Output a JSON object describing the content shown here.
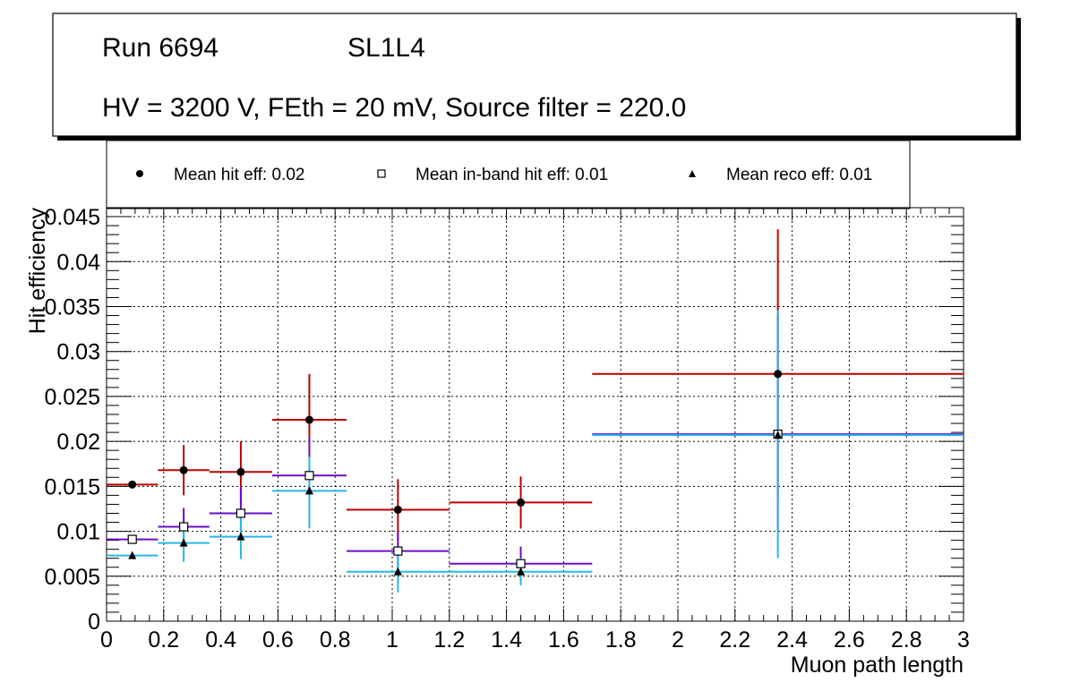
{
  "chart_data": {
    "type": "scatter",
    "title_box": {
      "line1_run": "Run 6694",
      "line1_layer": "SL1L4",
      "line2": "HV = 3200 V, FEth = 20 mV, Source filter = 220.0"
    },
    "legend": [
      {
        "label": "Mean hit  eff: 0.02",
        "marker": "circle"
      },
      {
        "label": "Mean in-band hit eff: 0.01",
        "marker": "open-square"
      },
      {
        "label": "Mean reco eff: 0.01",
        "marker": "triangle"
      }
    ],
    "xlabel": "Muon path length",
    "ylabel": "Hit efficiency",
    "xlim": [
      0,
      3
    ],
    "ylim": [
      0,
      0.046
    ],
    "grid": true,
    "xticks": [
      {
        "v": 0,
        "label": "0"
      },
      {
        "v": 0.2,
        "label": "0.2"
      },
      {
        "v": 0.4,
        "label": "0.4"
      },
      {
        "v": 0.6,
        "label": "0.6"
      },
      {
        "v": 0.8,
        "label": "0.8"
      },
      {
        "v": 1,
        "label": "1"
      },
      {
        "v": 1.2,
        "label": "1.2"
      },
      {
        "v": 1.4,
        "label": "1.4"
      },
      {
        "v": 1.6,
        "label": "1.6"
      },
      {
        "v": 1.8,
        "label": "1.8"
      },
      {
        "v": 2,
        "label": "2"
      },
      {
        "v": 2.2,
        "label": "2.2"
      },
      {
        "v": 2.4,
        "label": "2.4"
      },
      {
        "v": 2.6,
        "label": "2.6"
      },
      {
        "v": 2.8,
        "label": "2.8"
      },
      {
        "v": 3,
        "label": "3"
      }
    ],
    "yticks": [
      {
        "v": 0,
        "label": "0"
      },
      {
        "v": 0.005,
        "label": "0.005"
      },
      {
        "v": 0.01,
        "label": "0.01"
      },
      {
        "v": 0.015,
        "label": "0.015"
      },
      {
        "v": 0.02,
        "label": "0.02"
      },
      {
        "v": 0.025,
        "label": "0.025"
      },
      {
        "v": 0.03,
        "label": "0.03"
      },
      {
        "v": 0.035,
        "label": "0.035"
      },
      {
        "v": 0.04,
        "label": "0.04"
      },
      {
        "v": 0.045,
        "label": "0.045"
      }
    ],
    "series": [
      {
        "name": "Mean hit eff",
        "marker": "circle",
        "color": "#c00000",
        "points": [
          {
            "x": 0.09,
            "xlo": 0.0,
            "xhi": 0.18,
            "y": 0.0152,
            "ylo": 0.0152,
            "yhi": 0.0152
          },
          {
            "x": 0.27,
            "xlo": 0.18,
            "xhi": 0.36,
            "y": 0.0168,
            "ylo": 0.014,
            "yhi": 0.0196
          },
          {
            "x": 0.47,
            "xlo": 0.36,
            "xhi": 0.58,
            "y": 0.0166,
            "ylo": 0.0133,
            "yhi": 0.02
          },
          {
            "x": 0.71,
            "xlo": 0.58,
            "xhi": 0.84,
            "y": 0.0224,
            "ylo": 0.0172,
            "yhi": 0.0275
          },
          {
            "x": 1.02,
            "xlo": 0.84,
            "xhi": 1.2,
            "y": 0.0124,
            "ylo": 0.009,
            "yhi": 0.0158
          },
          {
            "x": 1.45,
            "xlo": 1.2,
            "xhi": 1.7,
            "y": 0.0132,
            "ylo": 0.0103,
            "yhi": 0.0161
          },
          {
            "x": 2.35,
            "xlo": 1.7,
            "xhi": 3.0,
            "y": 0.0275,
            "ylo": 0.0137,
            "yhi": 0.0436
          }
        ]
      },
      {
        "name": "Mean in-band hit eff",
        "marker": "open-square",
        "color": "#6a0dc8",
        "points": [
          {
            "x": 0.09,
            "xlo": 0.0,
            "xhi": 0.18,
            "y": 0.0091,
            "ylo": 0.0091,
            "yhi": 0.0091
          },
          {
            "x": 0.27,
            "xlo": 0.18,
            "xhi": 0.36,
            "y": 0.0105,
            "ylo": 0.0083,
            "yhi": 0.0126
          },
          {
            "x": 0.47,
            "xlo": 0.36,
            "xhi": 0.58,
            "y": 0.012,
            "ylo": 0.0092,
            "yhi": 0.0149
          },
          {
            "x": 0.71,
            "xlo": 0.58,
            "xhi": 0.84,
            "y": 0.0162,
            "ylo": 0.012,
            "yhi": 0.0205
          },
          {
            "x": 1.02,
            "xlo": 0.84,
            "xhi": 1.2,
            "y": 0.0078,
            "ylo": 0.0055,
            "yhi": 0.01
          },
          {
            "x": 1.45,
            "xlo": 1.2,
            "xhi": 1.7,
            "y": 0.0064,
            "ylo": 0.0045,
            "yhi": 0.0083
          },
          {
            "x": 2.35,
            "xlo": 1.7,
            "xhi": 3.0,
            "y": 0.0208,
            "ylo": 0.01,
            "yhi": 0.034
          }
        ]
      },
      {
        "name": "Mean reco eff",
        "marker": "triangle",
        "color": "#29b6e8",
        "points": [
          {
            "x": 0.09,
            "xlo": 0.0,
            "xhi": 0.18,
            "y": 0.0073,
            "ylo": 0.0073,
            "yhi": 0.0073
          },
          {
            "x": 0.27,
            "xlo": 0.18,
            "xhi": 0.36,
            "y": 0.0087,
            "ylo": 0.0066,
            "yhi": 0.0108
          },
          {
            "x": 0.47,
            "xlo": 0.36,
            "xhi": 0.58,
            "y": 0.0094,
            "ylo": 0.0069,
            "yhi": 0.0119
          },
          {
            "x": 0.71,
            "xlo": 0.58,
            "xhi": 0.84,
            "y": 0.0145,
            "ylo": 0.0103,
            "yhi": 0.0183
          },
          {
            "x": 1.02,
            "xlo": 0.84,
            "xhi": 1.2,
            "y": 0.0055,
            "ylo": 0.0032,
            "yhi": 0.0078
          },
          {
            "x": 1.45,
            "xlo": 1.2,
            "xhi": 1.7,
            "y": 0.0055,
            "ylo": 0.004,
            "yhi": 0.007
          },
          {
            "x": 2.35,
            "xlo": 1.7,
            "xhi": 3.0,
            "y": 0.0207,
            "ylo": 0.007,
            "yhi": 0.0346
          }
        ]
      }
    ]
  }
}
